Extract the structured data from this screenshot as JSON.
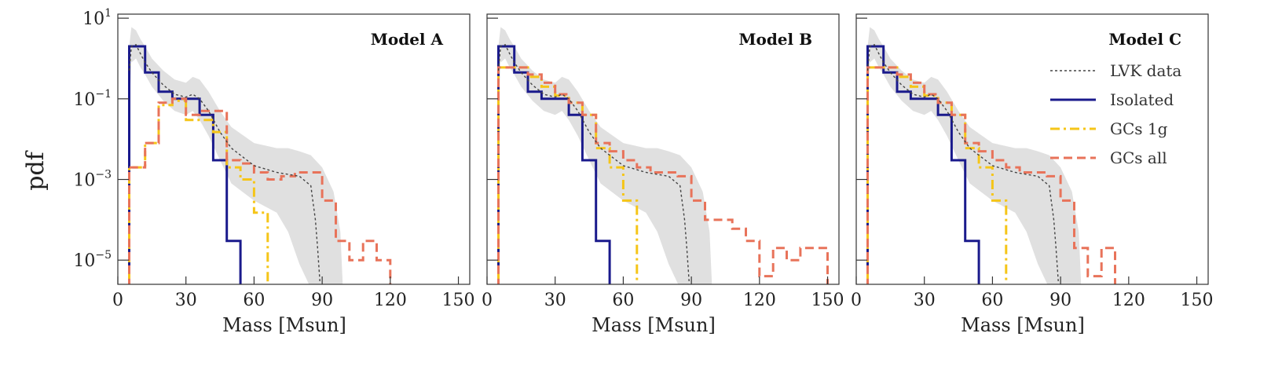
{
  "figure": {
    "ylabel": "pdf"
  },
  "chart_data": [
    {
      "type": "line",
      "title": "Model A",
      "xlabel": "Mass [Msun]",
      "ylabel": "pdf",
      "xlim": [
        0,
        155
      ],
      "ylim_log10": [
        -5.6,
        1.1
      ],
      "y_scale": "log",
      "xticks": [
        0,
        30,
        60,
        90,
        120,
        150
      ],
      "yticks": [
        {
          "exp": 1,
          "text": "10",
          "sup": "1"
        },
        {
          "exp": -1,
          "text": "10",
          "sup": "−1"
        },
        {
          "exp": -3,
          "text": "10",
          "sup": "−3"
        },
        {
          "exp": -5,
          "text": "10",
          "sup": "−5"
        }
      ],
      "grid": false,
      "series": [
        {
          "name": "Isolated",
          "kind": "step",
          "color": "#1a1a8c",
          "dash": "",
          "edges": [
            5,
            6,
            12,
            18,
            24,
            30,
            36,
            42,
            48,
            54
          ],
          "values": [
            2,
            2,
            0.45,
            0.15,
            0.1,
            0.1,
            0.04,
            0.003,
            3e-05
          ]
        },
        {
          "name": "GCs 1g",
          "kind": "step",
          "color": "#f5c518",
          "dash": "12,5,3,5",
          "edges": [
            5,
            6,
            12,
            18,
            24,
            30,
            36,
            42,
            48,
            54,
            60,
            66
          ],
          "values": [
            0.002,
            0.002,
            0.008,
            0.07,
            0.09,
            0.03,
            0.03,
            0.015,
            0.002,
            0.001,
            0.00015
          ]
        },
        {
          "name": "GCs all",
          "kind": "step",
          "color": "#e8735a",
          "dash": "11,6",
          "edges": [
            5,
            6,
            12,
            18,
            24,
            30,
            36,
            42,
            48,
            54,
            60,
            66,
            72,
            78,
            84,
            90,
            96,
            102,
            108,
            114,
            120
          ],
          "values": [
            0.002,
            0.002,
            0.008,
            0.08,
            0.1,
            0.04,
            0.05,
            0.05,
            0.003,
            0.0025,
            0.0015,
            0.001,
            0.0012,
            0.0015,
            0.0015,
            0.0003,
            3e-05,
            1e-05,
            3e-05,
            1e-05
          ]
        },
        {
          "name": "LVK data",
          "kind": "curve",
          "color": "#444444",
          "dash": "3,3",
          "x": [
            5,
            6,
            8,
            10,
            12,
            15,
            20,
            25,
            30,
            33,
            36,
            40,
            45,
            50,
            60,
            70,
            80,
            85,
            87,
            88,
            89
          ],
          "y": [
            0.5,
            2,
            2.2,
            1.3,
            0.8,
            0.45,
            0.22,
            0.13,
            0.11,
            0.13,
            0.1,
            0.05,
            0.015,
            0.006,
            0.0022,
            0.0015,
            0.0012,
            0.0007,
            0.0001,
            2e-05,
            3e-06
          ]
        }
      ]
    },
    {
      "type": "line",
      "title": "Model B",
      "xlabel": "Mass [Msun]",
      "ylabel": "",
      "xlim": [
        0,
        155
      ],
      "ylim_log10": [
        -5.6,
        1.1
      ],
      "y_scale": "log",
      "xticks": [
        0,
        30,
        60,
        90,
        120,
        150
      ],
      "yticks": [],
      "grid": false,
      "series": [
        {
          "name": "Isolated",
          "kind": "step",
          "color": "#1a1a8c",
          "dash": "",
          "edges": [
            5,
            6,
            12,
            18,
            24,
            30,
            36,
            42,
            48,
            54
          ],
          "values": [
            2,
            2,
            0.45,
            0.15,
            0.1,
            0.1,
            0.04,
            0.003,
            3e-05
          ]
        },
        {
          "name": "GCs 1g",
          "kind": "step",
          "color": "#f5c518",
          "dash": "12,5,3,5",
          "edges": [
            5,
            6,
            12,
            18,
            24,
            30,
            36,
            42,
            48,
            54,
            60,
            66
          ],
          "values": [
            0.6,
            0.6,
            0.6,
            0.35,
            0.2,
            0.12,
            0.08,
            0.04,
            0.006,
            0.002,
            0.0003
          ]
        },
        {
          "name": "GCs all",
          "kind": "step",
          "color": "#e8735a",
          "dash": "11,6",
          "edges": [
            5,
            6,
            12,
            18,
            24,
            30,
            36,
            42,
            48,
            54,
            60,
            66,
            72,
            78,
            84,
            90,
            96,
            102,
            108,
            114,
            120,
            126,
            132,
            138,
            144,
            150
          ],
          "values": [
            0.6,
            0.6,
            0.6,
            0.4,
            0.25,
            0.13,
            0.08,
            0.04,
            0.008,
            0.005,
            0.003,
            0.002,
            0.0015,
            0.0015,
            0.0012,
            0.0003,
            0.0001,
            0.0001,
            6e-05,
            3e-05,
            4e-06,
            2e-05,
            1e-05,
            2e-05,
            2e-05
          ]
        },
        {
          "name": "LVK data",
          "kind": "curve",
          "color": "#444444",
          "dash": "3,3",
          "x": [
            5,
            6,
            8,
            10,
            12,
            15,
            20,
            25,
            30,
            33,
            36,
            40,
            45,
            50,
            60,
            70,
            80,
            85,
            87,
            88,
            89
          ],
          "y": [
            0.5,
            2,
            2.2,
            1.3,
            0.8,
            0.45,
            0.22,
            0.13,
            0.11,
            0.13,
            0.1,
            0.05,
            0.015,
            0.006,
            0.0022,
            0.0015,
            0.0012,
            0.0007,
            0.0001,
            2e-05,
            3e-06
          ]
        }
      ]
    },
    {
      "type": "line",
      "title": "Model C",
      "xlabel": "Mass [Msun]",
      "ylabel": "",
      "xlim": [
        0,
        155
      ],
      "ylim_log10": [
        -5.6,
        1.1
      ],
      "y_scale": "log",
      "xticks": [
        0,
        30,
        60,
        90,
        120,
        150
      ],
      "yticks": [],
      "grid": false,
      "legend": {
        "placement": "upper-right",
        "entries": [
          "LVK data",
          "Isolated",
          "GCs 1g",
          "GCs all"
        ]
      },
      "series": [
        {
          "name": "Isolated",
          "kind": "step",
          "color": "#1a1a8c",
          "dash": "",
          "edges": [
            5,
            6,
            12,
            18,
            24,
            30,
            36,
            42,
            48,
            54
          ],
          "values": [
            2,
            2,
            0.45,
            0.15,
            0.1,
            0.1,
            0.04,
            0.003,
            3e-05
          ]
        },
        {
          "name": "GCs 1g",
          "kind": "step",
          "color": "#f5c518",
          "dash": "12,5,3,5",
          "edges": [
            5,
            6,
            12,
            18,
            24,
            30,
            36,
            42,
            48,
            54,
            60,
            66
          ],
          "values": [
            0.6,
            0.6,
            0.6,
            0.35,
            0.2,
            0.12,
            0.08,
            0.04,
            0.006,
            0.002,
            0.0003
          ]
        },
        {
          "name": "GCs all",
          "kind": "step",
          "color": "#e8735a",
          "dash": "11,6",
          "edges": [
            5,
            6,
            12,
            18,
            24,
            30,
            36,
            42,
            48,
            54,
            60,
            66,
            72,
            78,
            84,
            90,
            96,
            102,
            108,
            114
          ],
          "values": [
            0.6,
            0.6,
            0.6,
            0.4,
            0.25,
            0.13,
            0.08,
            0.04,
            0.008,
            0.005,
            0.003,
            0.002,
            0.0015,
            0.0015,
            0.0012,
            0.0003,
            2e-05,
            4e-06,
            2e-05
          ]
        },
        {
          "name": "LVK data",
          "kind": "curve",
          "color": "#444444",
          "dash": "3,3",
          "x": [
            5,
            6,
            8,
            10,
            12,
            15,
            20,
            25,
            30,
            33,
            36,
            40,
            45,
            50,
            60,
            70,
            80,
            85,
            87,
            88,
            89
          ],
          "y": [
            0.5,
            2,
            2.2,
            1.3,
            0.8,
            0.45,
            0.22,
            0.13,
            0.11,
            0.13,
            0.1,
            0.05,
            0.015,
            0.006,
            0.0022,
            0.0015,
            0.0012,
            0.0007,
            0.0001,
            2e-05,
            3e-06
          ]
        }
      ]
    }
  ],
  "band": {
    "color": "#e0e0e0",
    "x": [
      5,
      6,
      8,
      10,
      12,
      15,
      20,
      25,
      30,
      33,
      36,
      40,
      45,
      50,
      60,
      70,
      75,
      80,
      85,
      90,
      95,
      98,
      99
    ],
    "upper": [
      2,
      6,
      5,
      3,
      2,
      1,
      0.5,
      0.3,
      0.25,
      0.35,
      0.3,
      0.15,
      0.05,
      0.02,
      0.008,
      0.006,
      0.006,
      0.005,
      0.004,
      0.002,
      0.0005,
      5e-05,
      3e-06
    ],
    "lower": [
      0.05,
      0.8,
      1,
      0.6,
      0.4,
      0.2,
      0.09,
      0.05,
      0.04,
      0.05,
      0.03,
      0.012,
      0.003,
      0.0008,
      0.0003,
      0.00015,
      5e-05,
      8e-06,
      2e-06,
      2e-06,
      2e-06,
      2e-06,
      2e-06
    ]
  }
}
